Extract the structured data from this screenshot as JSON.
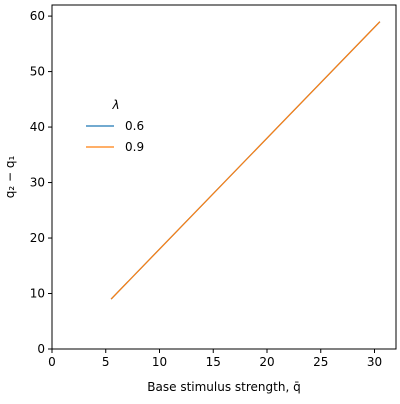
{
  "chart_data": {
    "type": "line",
    "title": "",
    "xlabel": "Base stimulus strength, q̄",
    "ylabel": "q₂ − q₁",
    "xlim": [
      0,
      32
    ],
    "ylim": [
      0,
      62
    ],
    "xticks": [
      0,
      5,
      10,
      15,
      20,
      25,
      30
    ],
    "yticks": [
      0,
      10,
      20,
      30,
      40,
      50,
      60
    ],
    "grid": false,
    "legend": {
      "title": "λ",
      "placement": "upper-left"
    },
    "series": [
      {
        "name": "0.6",
        "color": "#1f77b4",
        "x": [
          5.5,
          30.5
        ],
        "y": [
          9.0,
          59.0
        ]
      },
      {
        "name": "0.9",
        "color": "#ff7f0e",
        "x": [
          5.5,
          30.5
        ],
        "y": [
          9.0,
          59.0
        ]
      }
    ]
  }
}
